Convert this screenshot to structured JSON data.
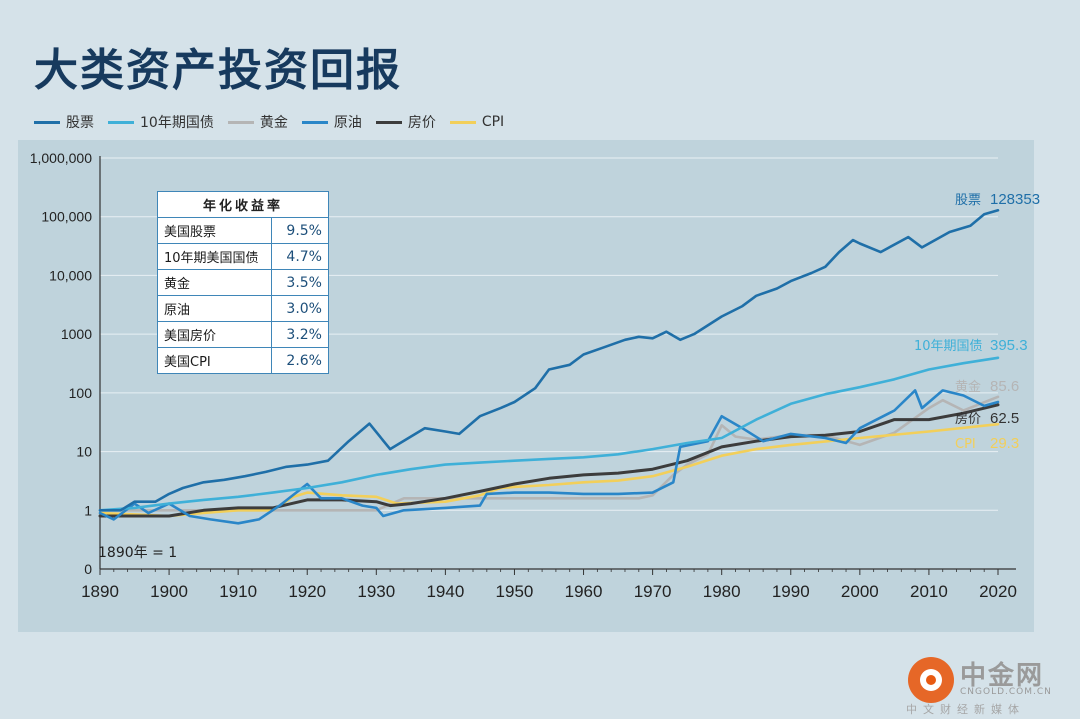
{
  "title": "大类资产投资回报",
  "legend": [
    {
      "name": "股票",
      "color": "#1f6fa8"
    },
    {
      "name": "10年期国债",
      "color": "#3fb0d8"
    },
    {
      "name": "黄金",
      "color": "#b5b5b5"
    },
    {
      "name": "原油",
      "color": "#2a86c8"
    },
    {
      "name": "房价",
      "color": "#3c3c3c"
    },
    {
      "name": "CPI",
      "color": "#f2cf5a"
    }
  ],
  "table": {
    "header": "年化收益率",
    "rows": [
      {
        "label": "美国股票",
        "value": "9.5%"
      },
      {
        "label": "10年期美国国债",
        "value": "4.7%"
      },
      {
        "label": "黄金",
        "value": "3.5%"
      },
      {
        "label": "原油",
        "value": "3.0%"
      },
      {
        "label": "美国房价",
        "value": "3.2%"
      },
      {
        "label": "美国CPI",
        "value": "2.6%"
      }
    ]
  },
  "base_note": "1890年 = 1",
  "watermark": {
    "name": "中金网",
    "url": "CNGOLD.COM.CN",
    "sub": "中文财经新媒体"
  },
  "chart_data": {
    "type": "line",
    "yscale": "log",
    "xlim": [
      1890,
      2020
    ],
    "ylim": [
      0.1,
      1000000
    ],
    "x_ticks": [
      1890,
      1900,
      1910,
      1920,
      1930,
      1940,
      1950,
      1960,
      1970,
      1980,
      1990,
      2000,
      2010,
      2020
    ],
    "y_ticks": [
      {
        "value": 0.1,
        "label": "0"
      },
      {
        "value": 1,
        "label": "1"
      },
      {
        "value": 10,
        "label": "10"
      },
      {
        "value": 100,
        "label": "100"
      },
      {
        "value": 1000,
        "label": "1000"
      },
      {
        "value": 10000,
        "label": "10,000"
      },
      {
        "value": 100000,
        "label": "100,000"
      },
      {
        "value": 1000000,
        "label": "1,000,000"
      }
    ],
    "series": [
      {
        "name": "股票",
        "color": "#1f6fa8",
        "end_label": "128353",
        "x": [
          1890,
          1893,
          1895,
          1898,
          1900,
          1902,
          1905,
          1908,
          1911,
          1914,
          1917,
          1920,
          1923,
          1926,
          1929,
          1932,
          1935,
          1937,
          1940,
          1942,
          1945,
          1948,
          1950,
          1953,
          1955,
          1958,
          1960,
          1963,
          1966,
          1968,
          1970,
          1972,
          1974,
          1976,
          1980,
          1983,
          1985,
          1988,
          1990,
          1993,
          1995,
          1997,
          1999,
          2000,
          2003,
          2007,
          2009,
          2013,
          2016,
          2018,
          2020
        ],
        "y": [
          1,
          1,
          1.4,
          1.4,
          1.9,
          2.4,
          3,
          3.3,
          3.8,
          4.5,
          5.5,
          6,
          7,
          15,
          30,
          11,
          18,
          25,
          22,
          20,
          40,
          55,
          70,
          120,
          250,
          300,
          450,
          600,
          800,
          900,
          850,
          1100,
          800,
          1000,
          2000,
          3000,
          4500,
          6000,
          8000,
          11000,
          14000,
          25000,
          40000,
          35000,
          25000,
          45000,
          30000,
          55000,
          70000,
          110000,
          128353
        ]
      },
      {
        "name": "10年期国债",
        "color": "#3fb0d8",
        "end_label": "395.3",
        "x": [
          1890,
          1895,
          1900,
          1905,
          1910,
          1915,
          1920,
          1925,
          1930,
          1935,
          1940,
          1945,
          1950,
          1955,
          1960,
          1965,
          1970,
          1975,
          1980,
          1985,
          1990,
          1995,
          2000,
          2005,
          2010,
          2015,
          2020
        ],
        "y": [
          1,
          1.1,
          1.3,
          1.5,
          1.7,
          2,
          2.4,
          3,
          4,
          5,
          6,
          6.5,
          7,
          7.5,
          8,
          9,
          11,
          14,
          17,
          35,
          65,
          95,
          125,
          170,
          250,
          320,
          395.3
        ]
      },
      {
        "name": "黄金",
        "color": "#b5b5b5",
        "end_label": "85.6",
        "x": [
          1890,
          1900,
          1910,
          1920,
          1930,
          1934,
          1940,
          1950,
          1960,
          1968,
          1970,
          1973,
          1975,
          1978,
          1980,
          1982,
          1985,
          1990,
          1995,
          2000,
          2005,
          2010,
          2012,
          2015,
          2020
        ],
        "y": [
          1,
          1,
          1,
          1,
          1,
          1.6,
          1.6,
          1.6,
          1.6,
          1.6,
          1.8,
          4,
          6,
          9,
          28,
          18,
          16,
          19,
          19,
          13,
          21,
          55,
          75,
          50,
          85.6
        ]
      },
      {
        "name": "原油",
        "color": "#2a86c8",
        "end_label": "",
        "x": [
          1890,
          1892,
          1895,
          1897,
          1900,
          1903,
          1906,
          1910,
          1913,
          1916,
          1920,
          1922,
          1925,
          1928,
          1930,
          1931,
          1934,
          1940,
          1945,
          1946,
          1950,
          1955,
          1960,
          1965,
          1970,
          1973,
          1974,
          1978,
          1980,
          1983,
          1986,
          1990,
          1995,
          1998,
          2000,
          2005,
          2008,
          2009,
          2012,
          2015,
          2018,
          2020
        ],
        "y": [
          0.9,
          0.7,
          1.3,
          0.9,
          1.3,
          0.8,
          0.7,
          0.6,
          0.7,
          1.2,
          2.8,
          1.6,
          1.6,
          1.2,
          1.1,
          0.8,
          1,
          1.1,
          1.2,
          1.9,
          2,
          2,
          1.9,
          1.9,
          2,
          3,
          12,
          15,
          40,
          25,
          15,
          20,
          17,
          14,
          25,
          50,
          110,
          55,
          110,
          90,
          60,
          70
        ]
      },
      {
        "name": "房价",
        "color": "#3c3c3c",
        "end_label": "62.5",
        "x": [
          1890,
          1895,
          1900,
          1905,
          1910,
          1915,
          1920,
          1925,
          1930,
          1932,
          1935,
          1940,
          1945,
          1950,
          1955,
          1960,
          1965,
          1970,
          1975,
          1980,
          1985,
          1990,
          1995,
          2000,
          2005,
          2010,
          2015,
          2020
        ],
        "y": [
          0.8,
          0.8,
          0.8,
          1,
          1.1,
          1.1,
          1.5,
          1.5,
          1.4,
          1.2,
          1.3,
          1.6,
          2.1,
          2.8,
          3.5,
          4,
          4.3,
          5,
          7,
          12,
          15,
          18,
          19,
          22,
          35,
          35,
          45,
          62.5
        ]
      },
      {
        "name": "CPI",
        "color": "#f2cf5a",
        "end_label": "29.3",
        "x": [
          1890,
          1895,
          1900,
          1905,
          1910,
          1915,
          1918,
          1920,
          1925,
          1930,
          1933,
          1940,
          1945,
          1948,
          1950,
          1955,
          1960,
          1965,
          1970,
          1975,
          1980,
          1985,
          1990,
          2000,
          2010,
          2020
        ],
        "y": [
          0.9,
          0.85,
          0.8,
          0.9,
          1,
          1,
          1.7,
          2,
          1.8,
          1.7,
          1.3,
          1.4,
          1.8,
          2.4,
          2.5,
          2.7,
          3,
          3.2,
          3.8,
          5.5,
          8.5,
          11,
          13,
          17,
          22,
          29.3
        ]
      }
    ]
  }
}
